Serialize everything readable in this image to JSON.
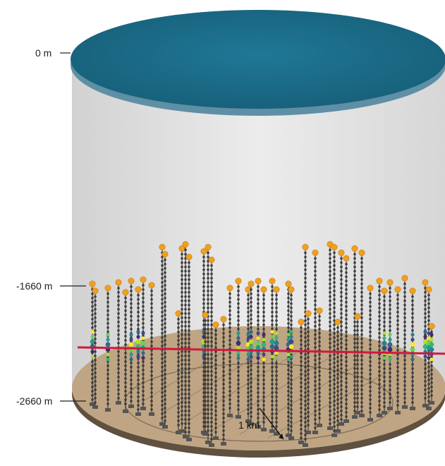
{
  "depth_labels": {
    "surface": "0 m",
    "detector_top": "-1660 m",
    "seabed": "-2660 m"
  },
  "scale_label": "1 km",
  "colors": {
    "sea_surface": "#1b6a86",
    "sea_surface_edge": "#5f8fa5",
    "water_column": "#e3e3e3",
    "seabed": "#bfa584",
    "seabed_edge": "#6b5b4a",
    "string_line": "#2a2a2a",
    "optical_module": "#3a3a3a",
    "buoy": "#f0a020",
    "muon_track": "#d0193f",
    "hit_colors": [
      "#fde725",
      "#b5de2b",
      "#6ece58",
      "#35b779",
      "#1f9e89",
      "#26828e",
      "#31688e",
      "#3e4989",
      "#482878"
    ]
  }
}
